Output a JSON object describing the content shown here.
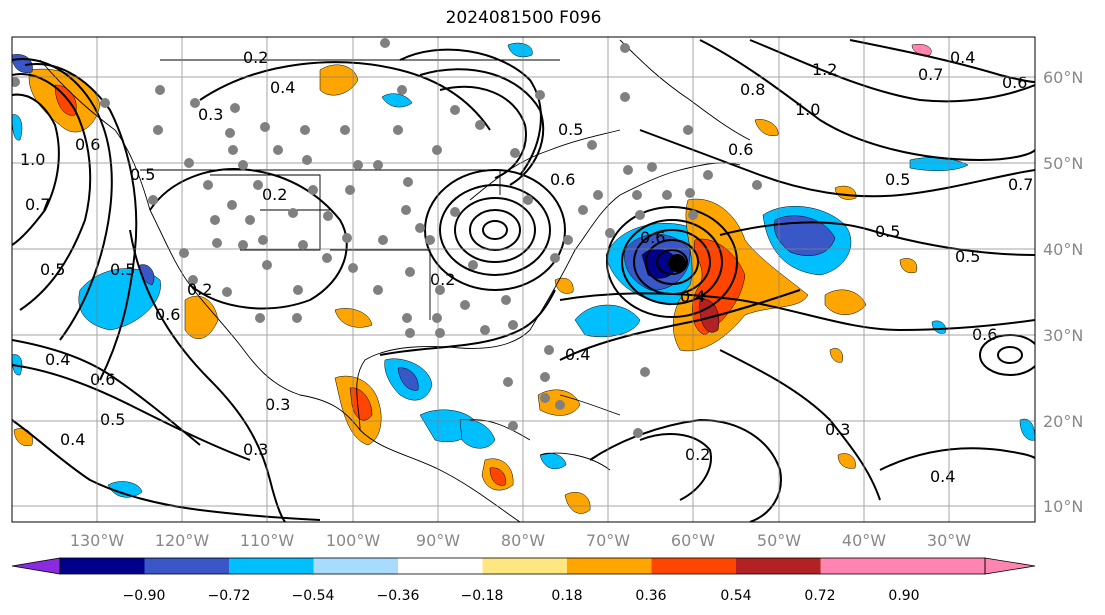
{
  "title": "2024081500 F096",
  "lon_labels": [
    "130°W",
    "120°W",
    "110°W",
    "100°W",
    "90°W",
    "80°W",
    "70°W",
    "60°W",
    "50°W",
    "40°W",
    "30°W"
  ],
  "lat_labels": [
    "60°N",
    "50°N",
    "40°N",
    "30°N",
    "20°N",
    "10°N"
  ],
  "colorbar": {
    "ticks": [
      "−0.90",
      "−0.72",
      "−0.54",
      "−0.36",
      "−0.18",
      "0.18",
      "0.36",
      "0.54",
      "0.72",
      "0.90"
    ],
    "colors": [
      "#8a2be2",
      "#00008b",
      "#3a57c8",
      "#00bfff",
      "#a8dcff",
      "#ffffff",
      "#ffe680",
      "#ffa500",
      "#ff4500",
      "#b22222",
      "#ff85b0"
    ]
  },
  "contour_labels": [
    "0.2",
    "0.4",
    "0.3",
    "0.2",
    "0.6",
    "0.5",
    "1.0",
    "0.7",
    "0.5",
    "0.4",
    "0.6",
    "0.5",
    "0.4",
    "0.3",
    "0.3",
    "0.2",
    "0.6",
    "0.4",
    "0.5",
    "0.6",
    "0.8",
    "1.0",
    "1.2",
    "0.7",
    "0.4",
    "0.6",
    "0.5",
    "0.7",
    "0.5",
    "0.5",
    "0.6",
    "0.4",
    "0.3",
    "0.4",
    "0.2",
    "0.5",
    "0.6",
    "0.6",
    "0.2"
  ]
}
